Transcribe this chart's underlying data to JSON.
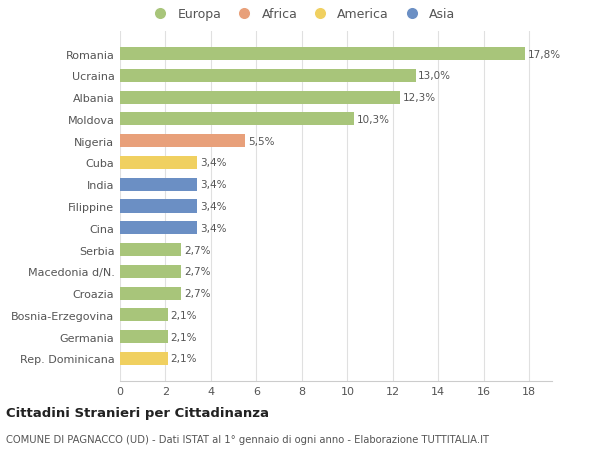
{
  "countries": [
    "Romania",
    "Ucraina",
    "Albania",
    "Moldova",
    "Nigeria",
    "Cuba",
    "India",
    "Filippine",
    "Cina",
    "Serbia",
    "Macedonia d/N.",
    "Croazia",
    "Bosnia-Erzegovina",
    "Germania",
    "Rep. Dominicana"
  ],
  "values": [
    17.8,
    13.0,
    12.3,
    10.3,
    5.5,
    3.4,
    3.4,
    3.4,
    3.4,
    2.7,
    2.7,
    2.7,
    2.1,
    2.1,
    2.1
  ],
  "labels": [
    "17,8%",
    "13,0%",
    "12,3%",
    "10,3%",
    "5,5%",
    "3,4%",
    "3,4%",
    "3,4%",
    "3,4%",
    "2,7%",
    "2,7%",
    "2,7%",
    "2,1%",
    "2,1%",
    "2,1%"
  ],
  "categories": [
    "Europa",
    "Africa",
    "America",
    "Asia"
  ],
  "colors": {
    "Europa": "#a8c57a",
    "Africa": "#e8a07a",
    "America": "#f0d060",
    "Asia": "#6b8fc4"
  },
  "bar_colors": [
    "Europa",
    "Europa",
    "Europa",
    "Europa",
    "Africa",
    "America",
    "Asia",
    "Asia",
    "Asia",
    "Europa",
    "Europa",
    "Europa",
    "Europa",
    "Europa",
    "America"
  ],
  "background_color": "#ffffff",
  "title": "Cittadini Stranieri per Cittadinanza",
  "subtitle": "COMUNE DI PAGNACCO (UD) - Dati ISTAT al 1° gennaio di ogni anno - Elaborazione TUTTITALIA.IT",
  "xlim": [
    0,
    19
  ],
  "xticks": [
    0,
    2,
    4,
    6,
    8,
    10,
    12,
    14,
    16,
    18
  ]
}
